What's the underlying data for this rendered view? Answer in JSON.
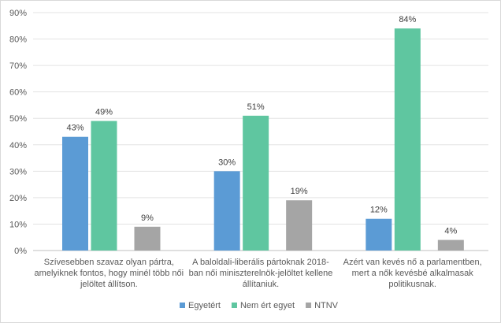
{
  "chart_data": {
    "type": "bar",
    "title": "",
    "xlabel": "",
    "ylabel": "",
    "ylim": [
      0,
      90
    ],
    "y_ticks": [
      0,
      10,
      20,
      30,
      40,
      50,
      60,
      70,
      80,
      90
    ],
    "y_tick_format": "{v}%",
    "grid": true,
    "legend_position": "bottom",
    "categories": [
      [
        "Szívesebben szavaz olyan pártra,",
        "amelyiknek fontos, hogy minél több női",
        "jelöltet állítson."
      ],
      [
        "A baloldali-liberális pártoknak 2018-",
        "ban női miniszterelnök-jelöltet kellene",
        "állítaniuk."
      ],
      [
        "Azért van kevés nő a parlamentben,",
        "mert a nők kevésbé alkalmasak",
        "politikusnak."
      ]
    ],
    "series": [
      {
        "name": "Egyetért",
        "color": "#5b9bd5",
        "values": [
          43,
          30,
          12
        ],
        "labels": [
          "43%",
          "30%",
          "12%"
        ]
      },
      {
        "name": "Nem ért egyet",
        "color": "#5fc6a0",
        "values": [
          49,
          51,
          84
        ],
        "labels": [
          "49%",
          "51%",
          "84%"
        ]
      },
      {
        "name": "NTNV",
        "color": "#a5a5a5",
        "values": [
          9,
          19,
          4
        ],
        "labels": [
          "9%",
          "19%",
          "4%"
        ]
      }
    ]
  }
}
